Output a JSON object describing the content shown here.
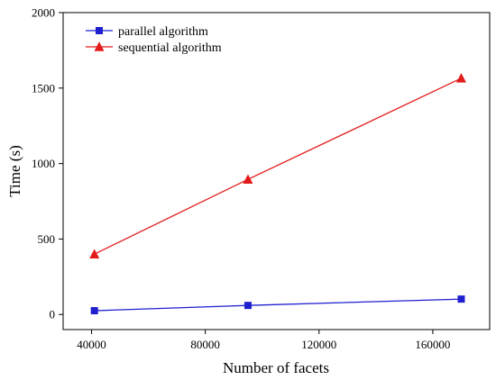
{
  "chart_data": {
    "type": "line",
    "title": "",
    "xlabel": "Number of facets",
    "ylabel": "Time (s)",
    "xlim": [
      30000,
      180000
    ],
    "ylim": [
      -100,
      2000
    ],
    "xticks": [
      40000,
      80000,
      120000,
      160000
    ],
    "yticks": [
      0,
      500,
      1000,
      1500,
      2000
    ],
    "x": [
      41000,
      95000,
      170000
    ],
    "series": [
      {
        "name": "parallel algorithm",
        "values": [
          25,
          60,
          102
        ],
        "color": "#1f1fd0",
        "marker": "square"
      },
      {
        "name": "sequential algorithm",
        "values": [
          400,
          895,
          1565
        ],
        "color": "#e31a1a",
        "marker": "triangle"
      }
    ],
    "legend_position": "top-left",
    "grid": false
  }
}
